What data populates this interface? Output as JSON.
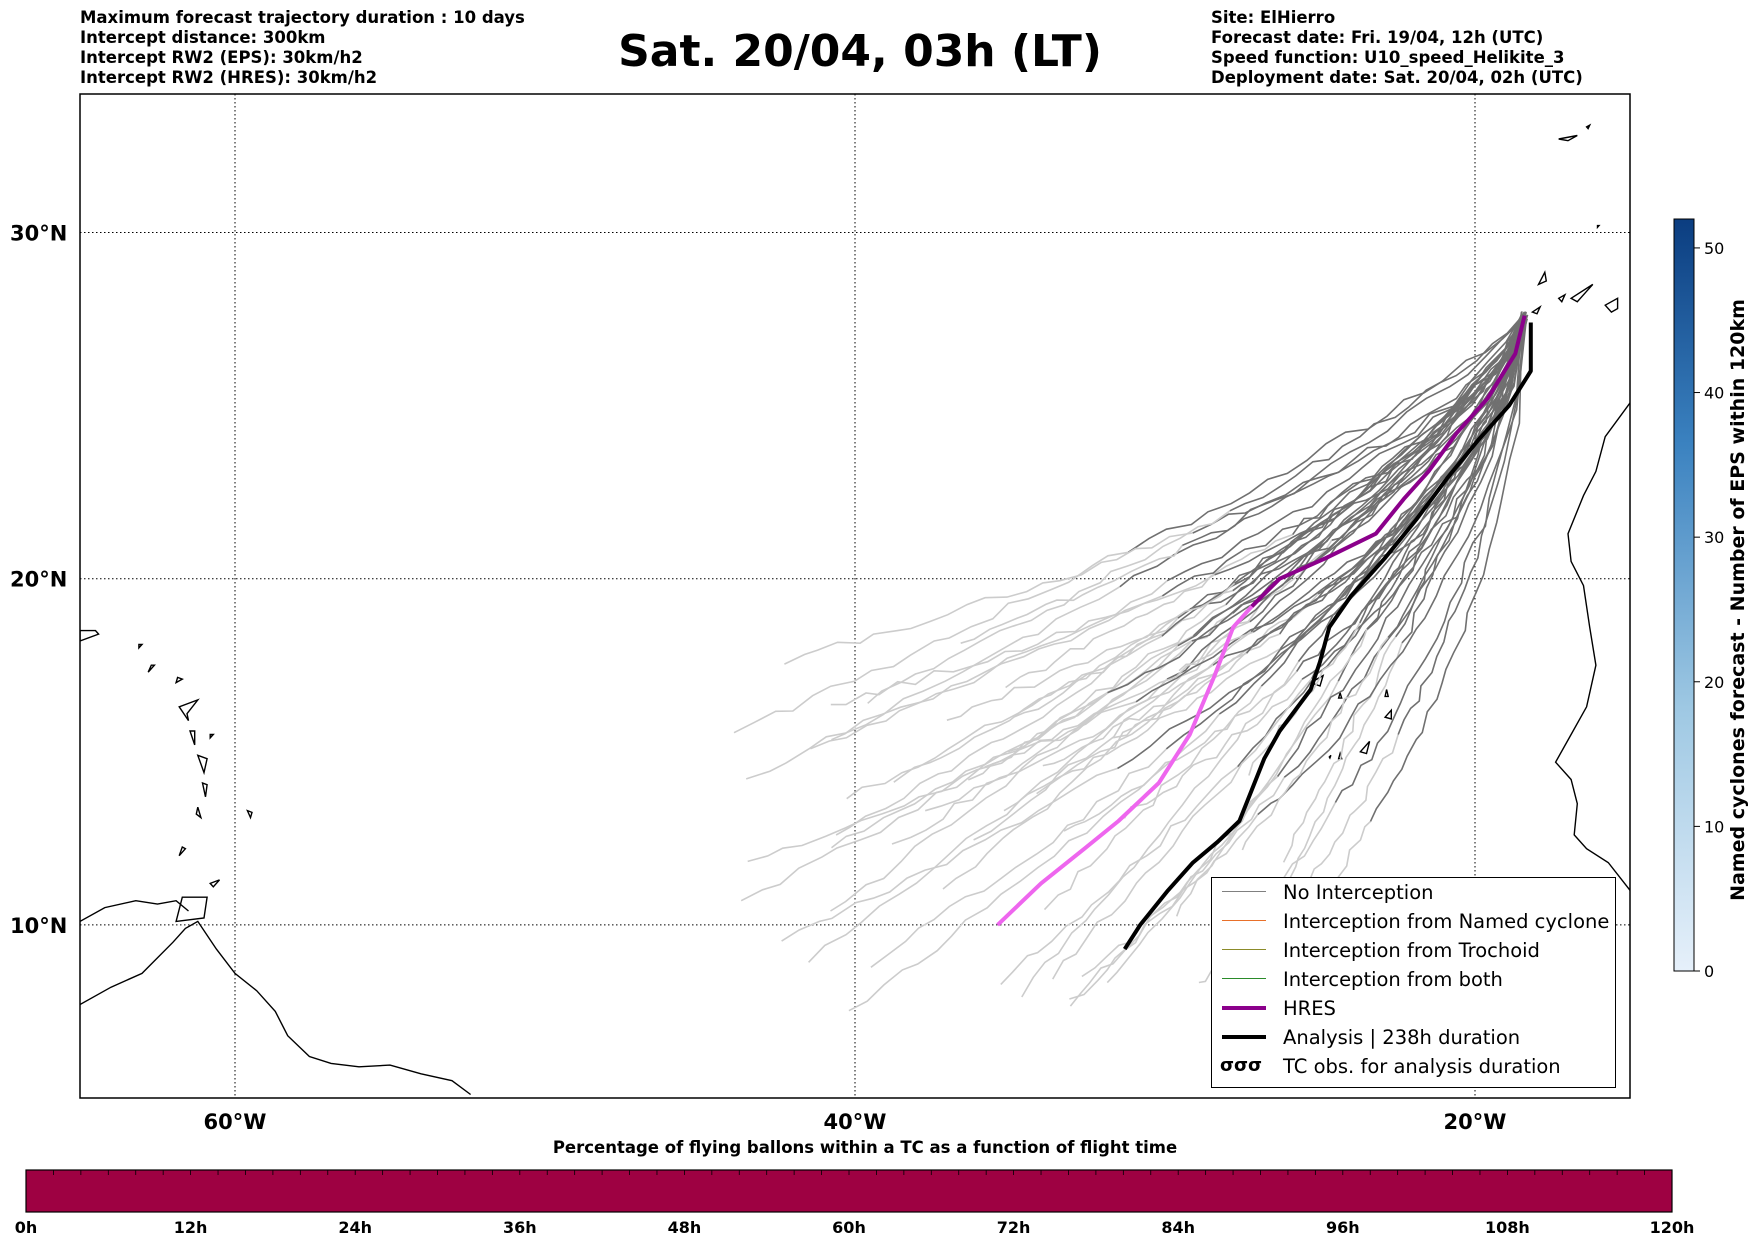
{
  "header": {
    "title": "Sat. 20/04, 03h (LT)",
    "left_lines": [
      "Maximum forecast trajectory duration : 10 days",
      "Intercept distance: 300km",
      "Intercept RW2 (EPS):  30km/h2",
      "Intercept RW2 (HRES): 30km/h2"
    ],
    "right_lines": [
      "Site: ElHierro",
      "Forecast date: Fri. 19/04, 12h (UTC)",
      "Speed function: U10_speed_Helikite_3",
      "Deployment date: Sat. 20/04, 02h (UTC)"
    ]
  },
  "map": {
    "lon_range": [
      -65,
      -15
    ],
    "lat_range": [
      5,
      34
    ],
    "lat_ticks": [
      {
        "value": 10,
        "label": "10°N"
      },
      {
        "value": 20,
        "label": "20°N"
      },
      {
        "value": 30,
        "label": "30°N"
      }
    ],
    "lon_ticks": [
      {
        "value": -60,
        "label": "60°W"
      },
      {
        "value": -40,
        "label": "40°W"
      },
      {
        "value": -20,
        "label": "20°W"
      }
    ],
    "launch_site": {
      "lon": -18.4,
      "lat": 27.6
    },
    "hres_track": [
      [
        -18.4,
        27.6
      ],
      [
        -18.7,
        26.5
      ],
      [
        -19.6,
        25.2
      ],
      [
        -20.6,
        24.2
      ],
      [
        -21.5,
        23.1
      ],
      [
        -22.3,
        22.3
      ],
      [
        -23.2,
        21.3
      ],
      [
        -24.8,
        20.6
      ],
      [
        -26.3,
        20.0
      ],
      [
        -27.2,
        19.2
      ],
      [
        -27.8,
        18.6
      ],
      [
        -28.4,
        17.2
      ],
      [
        -29.2,
        15.5
      ],
      [
        -30.2,
        14.1
      ],
      [
        -31.5,
        13.0
      ],
      [
        -32.6,
        12.2
      ],
      [
        -34.0,
        11.2
      ],
      [
        -35.4,
        10.0
      ]
    ],
    "analysis_track": [
      [
        -18.2,
        27.4
      ],
      [
        -18.2,
        26.0
      ],
      [
        -18.9,
        25.0
      ],
      [
        -19.9,
        24.0
      ],
      [
        -20.9,
        22.9
      ],
      [
        -21.9,
        21.7
      ],
      [
        -22.9,
        20.6
      ],
      [
        -24.0,
        19.5
      ],
      [
        -24.7,
        18.6
      ],
      [
        -25.0,
        17.6
      ],
      [
        -25.3,
        16.8
      ],
      [
        -26.3,
        15.6
      ],
      [
        -26.8,
        14.8
      ],
      [
        -27.2,
        13.9
      ],
      [
        -27.6,
        13.0
      ],
      [
        -28.3,
        12.4
      ],
      [
        -29.1,
        11.8
      ],
      [
        -29.9,
        11.0
      ],
      [
        -30.8,
        10.0
      ],
      [
        -31.3,
        9.3
      ]
    ],
    "legend": {
      "entries": [
        {
          "label": "No Interception",
          "color": "#808080",
          "style": "line"
        },
        {
          "label": "Interception from Named cyclone",
          "color": "#e8702a",
          "style": "line"
        },
        {
          "label": "Interception from Trochoid",
          "color": "#8b8b2a",
          "style": "line"
        },
        {
          "label": "Interception from both",
          "color": "#2a8b2a",
          "style": "line"
        },
        {
          "label": "HRES",
          "color": "#8b008b",
          "style": "thick"
        },
        {
          "label": "Analysis | 238h duration",
          "color": "#000000",
          "style": "thick"
        },
        {
          "label": "TC obs. for analysis duration",
          "color": "#000000",
          "style": "symbol"
        }
      ]
    }
  },
  "colorbar_eps": {
    "label": "Named cyclones forecast - Number of EPS within 120km",
    "min": 0,
    "max": 52,
    "ticks": [
      "0",
      "10",
      "20",
      "30",
      "40",
      "50"
    ],
    "color_low": "#e3eef8",
    "color_high": "#0a3a7a"
  },
  "pct_bar": {
    "title": "Percentage of flying ballons within a TC as a function of flight time",
    "ticks": [
      "0h",
      "12h",
      "24h",
      "36h",
      "48h",
      "60h",
      "72h",
      "84h",
      "96h",
      "108h",
      "120h"
    ],
    "fill_color": "#9e0142"
  },
  "colors": {
    "eps_far": "#cccccc",
    "eps_near": "#707070",
    "hres_near": "#8b008b",
    "hres_far": "#ee66ee"
  }
}
